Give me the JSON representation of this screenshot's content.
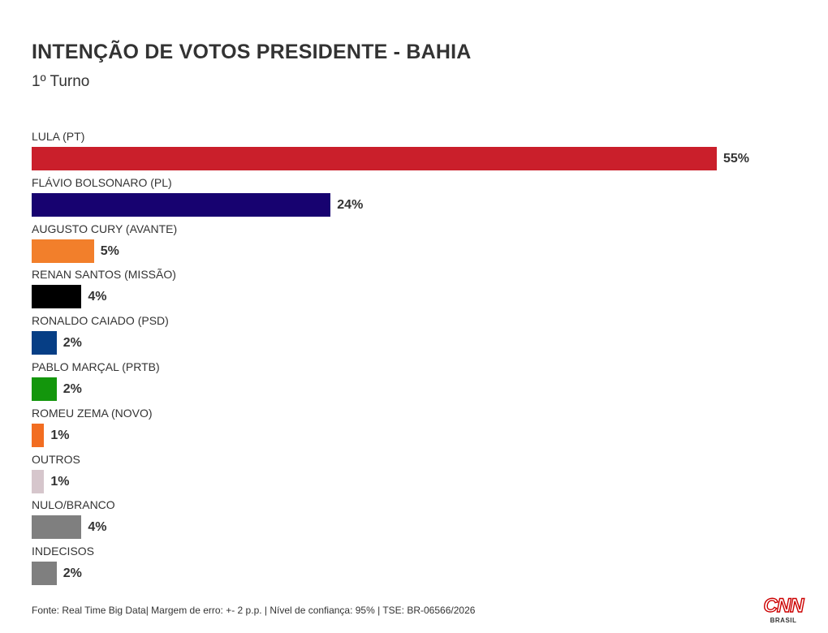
{
  "header": {
    "title": "INTENÇÃO DE VOTOS PRESIDENTE - BAHIA",
    "subtitle": "1º Turno"
  },
  "chart_data": {
    "type": "bar",
    "orientation": "horizontal",
    "title": "INTENÇÃO DE VOTOS PRESIDENTE - BAHIA",
    "subtitle": "1º Turno",
    "value_suffix": "%",
    "xlim": [
      0,
      60
    ],
    "grid": false,
    "legend": "none",
    "categories": [
      "LULA (PT)",
      "FLÁVIO BOLSONARO (PL)",
      "AUGUSTO CURY (AVANTE)",
      "RENAN SANTOS (MISSÃO)",
      "RONALDO CAIADO (PSD)",
      "PABLO MARÇAL (PRTB)",
      "ROMEU ZEMA (NOVO)",
      "OUTROS",
      "NULO/BRANCO",
      "INDECISOS"
    ],
    "values": [
      55,
      24,
      5,
      4,
      2,
      2,
      1,
      1,
      4,
      2
    ],
    "value_labels": [
      "55%",
      "24%",
      "5%",
      "4%",
      "2%",
      "2%",
      "1%",
      "1%",
      "4%",
      "2%"
    ],
    "colors": [
      "#ca1f2b",
      "#170270",
      "#f27f2b",
      "#000000",
      "#063e85",
      "#13960c",
      "#f26d21",
      "#d6c6cc",
      "#7f7f7f",
      "#7f7f7f"
    ]
  },
  "footer": {
    "source": "Fonte: Real Time Big Data| Margem de erro: +- 2 p.p. | Nível de confiança: 95% | TSE: BR-06566/2026"
  },
  "logo": {
    "mark": "CNN",
    "sub": "BRASIL"
  }
}
